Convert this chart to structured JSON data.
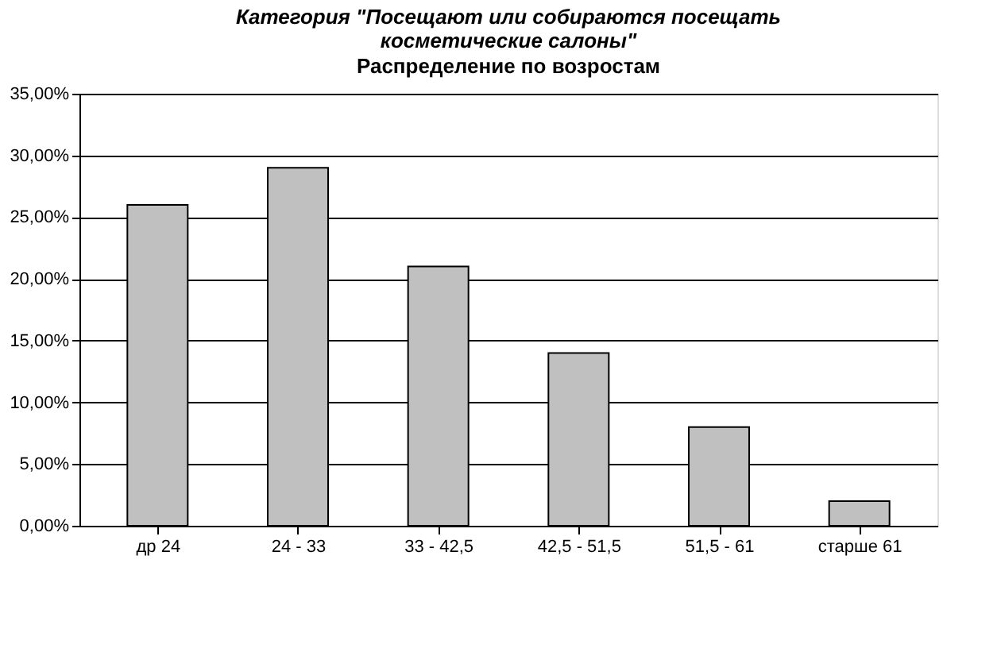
{
  "chart_data": {
    "type": "bar",
    "title": "Категория \"Посещают или собираются посещать косметические салоны\"",
    "subtitle": "Распределение по возростам",
    "categories": [
      "др 24",
      "24 - 33",
      "33 - 42,5",
      "42,5 - 51,5",
      "51,5 - 61",
      "старше 61"
    ],
    "values": [
      26,
      29,
      21,
      14,
      8,
      2
    ],
    "color": "#c0c0c0",
    "ylim": [
      0,
      35
    ],
    "yticks": [
      {
        "value": 0,
        "label": "0,00%"
      },
      {
        "value": 5,
        "label": "5,00%"
      },
      {
        "value": 10,
        "label": "10,00%"
      },
      {
        "value": 15,
        "label": "15,00%"
      },
      {
        "value": 20,
        "label": "20,00%"
      },
      {
        "value": 25,
        "label": "25,00%"
      },
      {
        "value": 30,
        "label": "30,00%"
      },
      {
        "value": 35,
        "label": "35,00%"
      }
    ],
    "grid": "y"
  }
}
